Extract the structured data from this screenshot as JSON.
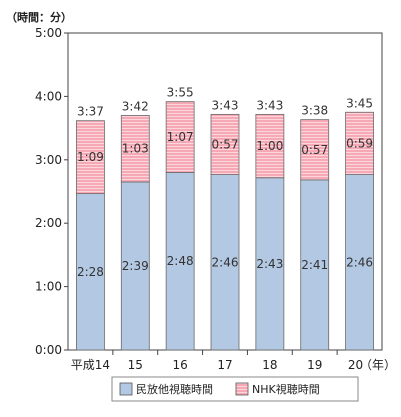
{
  "chart_data": {
    "type": "bar",
    "stacked": true,
    "y_unit_label": "（時間：分）",
    "x_unit_label": "（年）",
    "categories": [
      "平成14",
      "15",
      "16",
      "17",
      "18",
      "19",
      "20"
    ],
    "y_ticks": [
      "0:00",
      "1:00",
      "2:00",
      "3:00",
      "4:00",
      "5:00"
    ],
    "ylim_minutes": [
      0,
      300
    ],
    "grid": false,
    "legend_position": "bottom",
    "series": [
      {
        "name": "民放他視聴時間",
        "color": "#b3c8e2",
        "values_minutes": [
          148,
          159,
          168,
          166,
          163,
          161,
          166
        ],
        "labels": [
          "2:28",
          "2:39",
          "2:48",
          "2:46",
          "2:43",
          "2:41",
          "2:46"
        ]
      },
      {
        "name": "NHK視聴時間",
        "color": "#f5a0ae",
        "values_minutes": [
          69,
          63,
          67,
          57,
          60,
          57,
          59
        ],
        "labels": [
          "1:09",
          "1:03",
          "1:07",
          "0:57",
          "1:00",
          "0:57",
          "0:59"
        ]
      }
    ],
    "total_labels": [
      "3:37",
      "3:42",
      "3:55",
      "3:43",
      "3:43",
      "3:38",
      "3:45"
    ]
  }
}
